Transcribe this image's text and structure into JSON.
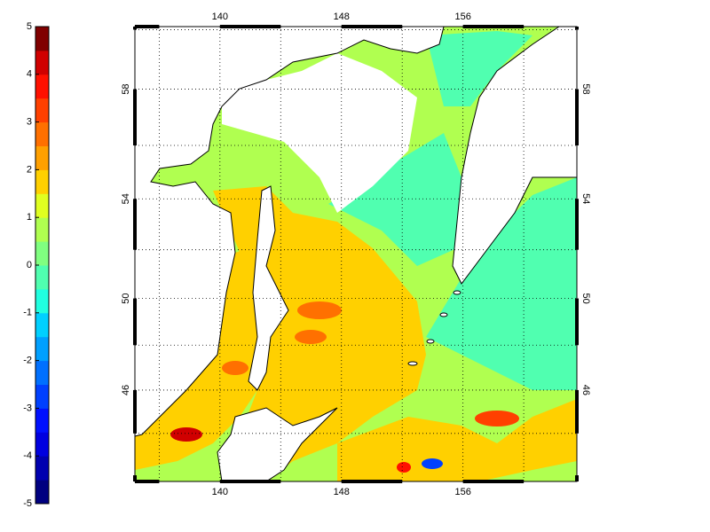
{
  "colorbar": {
    "lim": [
      -5,
      5
    ],
    "ticks": [
      -5,
      -4,
      -3,
      -2,
      -1,
      0,
      1,
      2,
      3,
      4,
      5
    ],
    "colors": [
      "#000080",
      "#0000b0",
      "#0000e0",
      "#0010ff",
      "#0040ff",
      "#0070ff",
      "#00a0ff",
      "#00d0ff",
      "#20ffe0",
      "#50ffb0",
      "#80ff80",
      "#b0ff50",
      "#e0ff20",
      "#ffd000",
      "#ffa000",
      "#ff7000",
      "#ff4000",
      "#ff1000",
      "#d00000",
      "#800000"
    ]
  },
  "map": {
    "projection": "mercator",
    "xlim": [
      134.4,
      163.5
    ],
    "ylim": [
      41.7,
      60.1
    ],
    "xticks": [
      140,
      148,
      156
    ],
    "yticks": [
      46,
      50,
      54,
      58
    ],
    "grid": true
  }
}
